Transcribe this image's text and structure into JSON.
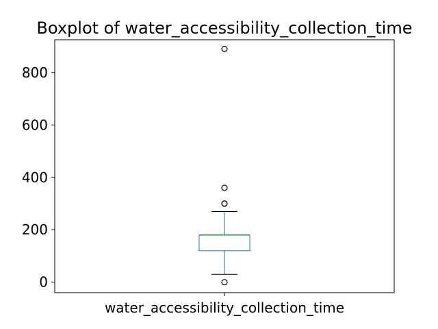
{
  "chart_data": {
    "type": "box",
    "title": "Boxplot of water_accessibility_collection_time",
    "categories": [
      "water_accessibility_collection_time"
    ],
    "xlabel": "",
    "ylabel": "",
    "ylim": [
      -40,
      925
    ],
    "yticks": [
      0,
      200,
      400,
      600,
      800
    ],
    "grid": false,
    "boxes": [
      {
        "category": "water_accessibility_collection_time",
        "whisker_low": 30,
        "q1": 120,
        "median": 180,
        "q3": 180,
        "whisker_high": 270,
        "outliers": [
          0,
          300,
          300,
          360,
          890
        ]
      }
    ],
    "colors": {
      "box": "#1f77b4",
      "median": "#2ca02c",
      "whisker": "#1f77b4",
      "cap": "#000000",
      "outlier": "#000000"
    }
  }
}
